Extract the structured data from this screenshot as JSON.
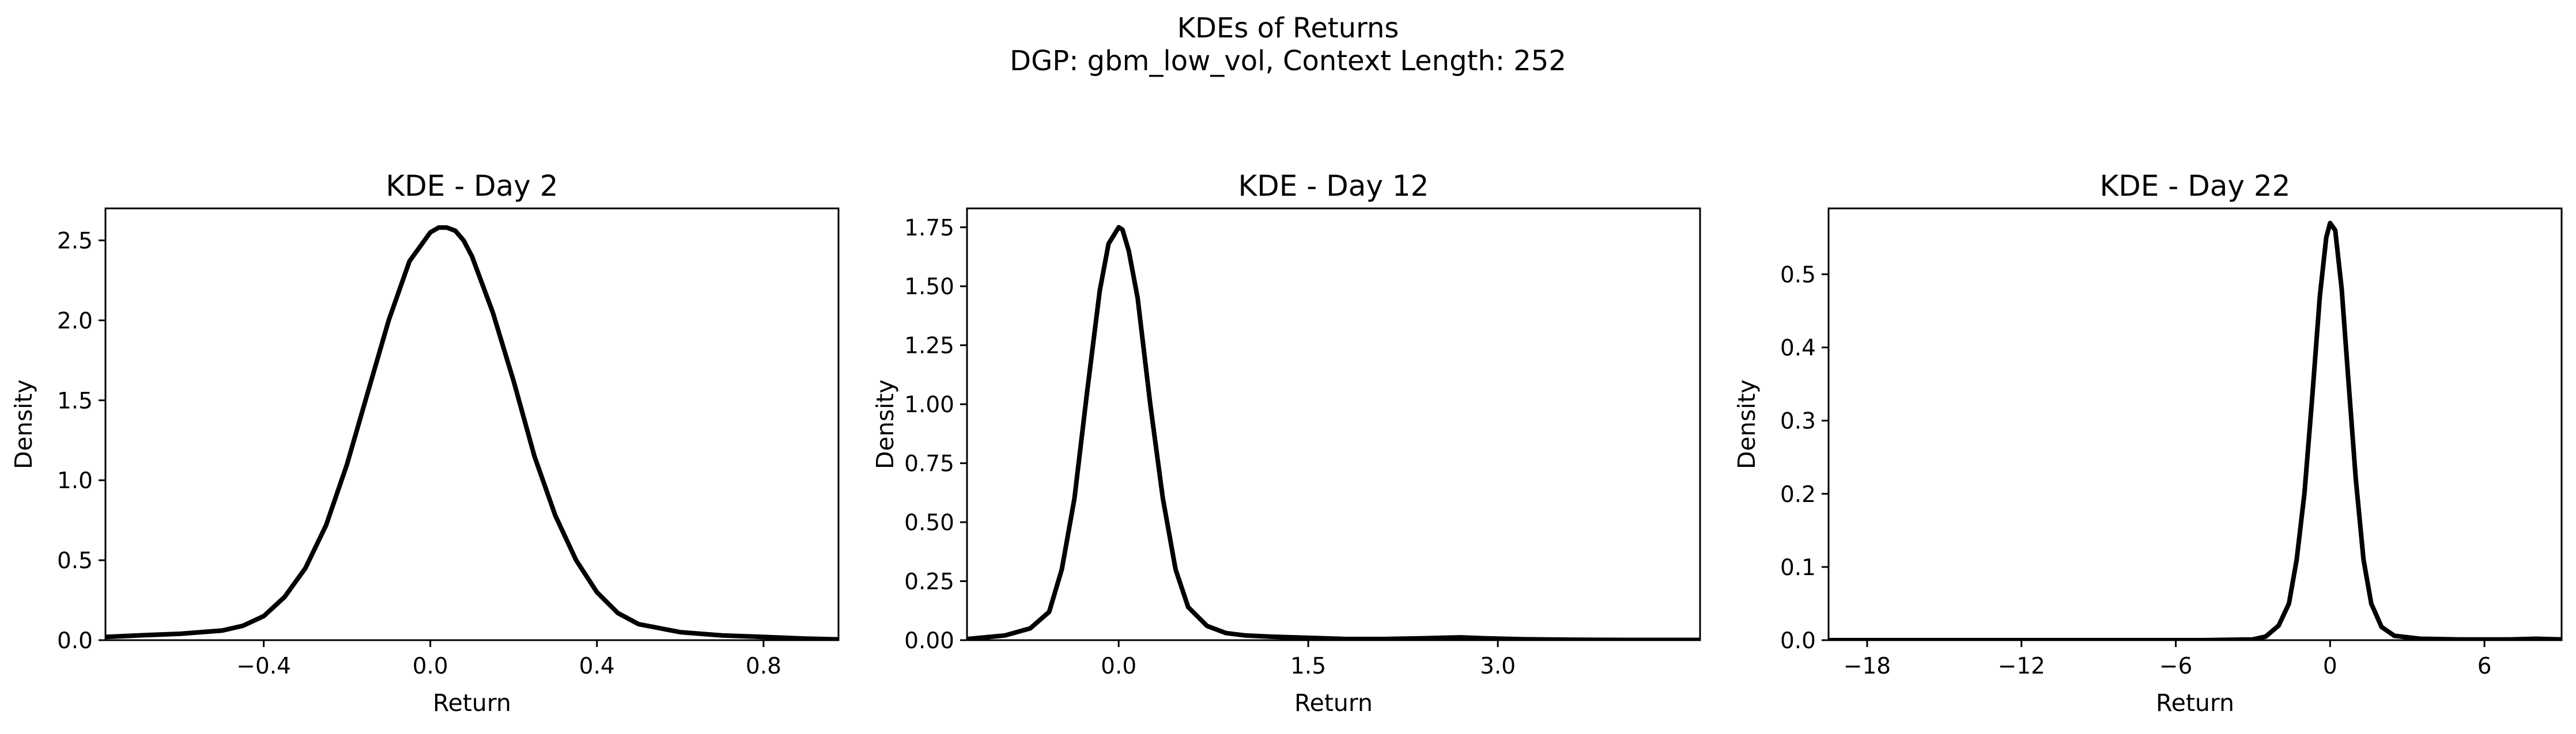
{
  "figure": {
    "title_line1": "KDEs of Returns",
    "title_line2": "DGP: gbm_low_vol, Context Length: 252"
  },
  "chart_data": [
    {
      "type": "line",
      "title": "KDE - Day 2",
      "xlabel": "Return",
      "ylabel": "Density",
      "xlim": [
        -0.78,
        0.98
      ],
      "ylim": [
        0,
        2.7
      ],
      "xticks": [
        -0.4,
        0.0,
        0.4,
        0.8
      ],
      "xtick_labels": [
        "−0.4",
        "0.0",
        "0.4",
        "0.8"
      ],
      "yticks": [
        0.0,
        0.5,
        1.0,
        1.5,
        2.0,
        2.5
      ],
      "ytick_labels": [
        "0.0",
        "0.5",
        "1.0",
        "1.5",
        "2.0",
        "2.5"
      ],
      "series_color": "#000000",
      "x": [
        -0.78,
        -0.7,
        -0.6,
        -0.5,
        -0.45,
        -0.4,
        -0.35,
        -0.3,
        -0.25,
        -0.2,
        -0.15,
        -0.1,
        -0.05,
        0.0,
        0.02,
        0.04,
        0.06,
        0.08,
        0.1,
        0.15,
        0.2,
        0.25,
        0.3,
        0.35,
        0.4,
        0.45,
        0.5,
        0.6,
        0.7,
        0.8,
        0.9,
        0.98
      ],
      "y": [
        0.02,
        0.03,
        0.04,
        0.06,
        0.09,
        0.15,
        0.27,
        0.45,
        0.72,
        1.1,
        1.55,
        2.0,
        2.37,
        2.55,
        2.58,
        2.58,
        2.56,
        2.5,
        2.4,
        2.05,
        1.62,
        1.15,
        0.78,
        0.5,
        0.3,
        0.17,
        0.1,
        0.05,
        0.03,
        0.02,
        0.01,
        0.005
      ]
    },
    {
      "type": "line",
      "title": "KDE - Day 12",
      "xlabel": "Return",
      "ylabel": "Density",
      "xlim": [
        -1.2,
        4.6
      ],
      "ylim": [
        0,
        1.83
      ],
      "xticks": [
        0.0,
        1.5,
        3.0
      ],
      "xtick_labels": [
        "0.0",
        "1.5",
        "3.0"
      ],
      "yticks": [
        0.0,
        0.25,
        0.5,
        0.75,
        1.0,
        1.25,
        1.5,
        1.75
      ],
      "ytick_labels": [
        "0.00",
        "0.25",
        "0.50",
        "0.75",
        "1.00",
        "1.25",
        "1.50",
        "1.75"
      ],
      "series_color": "#000000",
      "x": [
        -1.2,
        -0.9,
        -0.7,
        -0.55,
        -0.45,
        -0.35,
        -0.25,
        -0.15,
        -0.08,
        0.0,
        0.03,
        0.08,
        0.15,
        0.25,
        0.35,
        0.45,
        0.55,
        0.7,
        0.85,
        1.0,
        1.2,
        1.5,
        1.8,
        2.1,
        2.4,
        2.7,
        2.9,
        3.2,
        3.6,
        4.0,
        4.6
      ],
      "y": [
        0.005,
        0.02,
        0.05,
        0.12,
        0.3,
        0.6,
        1.05,
        1.48,
        1.68,
        1.75,
        1.74,
        1.65,
        1.45,
        1.0,
        0.6,
        0.3,
        0.14,
        0.06,
        0.03,
        0.02,
        0.015,
        0.01,
        0.005,
        0.005,
        0.008,
        0.012,
        0.008,
        0.004,
        0.002,
        0.001,
        0.001
      ]
    },
    {
      "type": "line",
      "title": "KDE - Day 22",
      "xlabel": "Return",
      "ylabel": "Density",
      "xlim": [
        -19.5,
        9.0
      ],
      "ylim": [
        0,
        0.59
      ],
      "xticks": [
        -18,
        -12,
        -6,
        0,
        6
      ],
      "xtick_labels": [
        "−18",
        "−12",
        "−6",
        "0",
        "6"
      ],
      "yticks": [
        0.0,
        0.1,
        0.2,
        0.3,
        0.4,
        0.5
      ],
      "ytick_labels": [
        "0.0",
        "0.1",
        "0.2",
        "0.3",
        "0.4",
        "0.5"
      ],
      "series_color": "#000000",
      "x": [
        -19.5,
        -15,
        -10,
        -5,
        -3,
        -2.5,
        -2.0,
        -1.6,
        -1.3,
        -1.0,
        -0.7,
        -0.4,
        -0.15,
        0.0,
        0.2,
        0.45,
        0.7,
        1.0,
        1.3,
        1.6,
        2.0,
        2.5,
        3.5,
        5,
        7,
        8,
        9.0
      ],
      "y": [
        0.0,
        0.0,
        0.0,
        0.0,
        0.001,
        0.005,
        0.02,
        0.05,
        0.11,
        0.2,
        0.33,
        0.47,
        0.55,
        0.57,
        0.56,
        0.48,
        0.36,
        0.22,
        0.11,
        0.05,
        0.018,
        0.006,
        0.002,
        0.001,
        0.001,
        0.002,
        0.001
      ]
    }
  ]
}
